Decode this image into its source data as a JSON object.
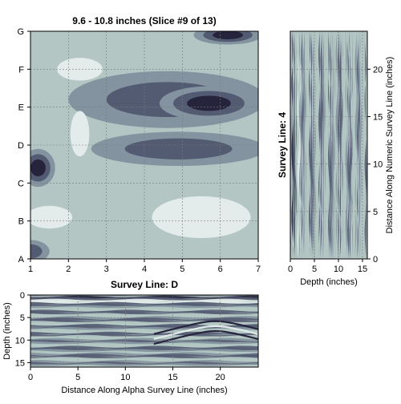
{
  "colors": {
    "light": "#e3ecea",
    "mid_light": "#b3c6c3",
    "mid": "#8393a0",
    "mid_dark": "#535b72",
    "dark": "#26233c",
    "grid": "#7c7c7c"
  },
  "chart_data": [
    {
      "type": "heatmap",
      "title": "9.6 - 10.8 inches  (Slice #9 of 13)",
      "xlabel": "",
      "ylabel": "",
      "x_ticks": [
        "1",
        "2",
        "3",
        "4",
        "5",
        "6",
        "7"
      ],
      "y_ticks": [
        "A",
        "B",
        "C",
        "D",
        "E",
        "F",
        "G"
      ],
      "xlim": [
        1,
        7
      ],
      "ylim": [
        0,
        6
      ],
      "grid": true,
      "levels": 5,
      "contour_features": [
        {
          "x": 4.6,
          "y": 4.2,
          "rx": 2.6,
          "ry": 0.75,
          "level": 3
        },
        {
          "x": 5.7,
          "y": 4.1,
          "rx": 1.3,
          "ry": 0.45,
          "level": 4
        },
        {
          "x": 4.9,
          "y": 2.9,
          "rx": 2.3,
          "ry": 0.45,
          "level": 3
        },
        {
          "x": 6.2,
          "y": 5.9,
          "rx": 0.9,
          "ry": 0.25,
          "level": 4
        },
        {
          "x": 1.2,
          "y": 2.4,
          "rx": 0.45,
          "ry": 0.5,
          "level": 4
        },
        {
          "x": 1.0,
          "y": 0.2,
          "rx": 0.5,
          "ry": 0.3,
          "level": 3
        },
        {
          "x": 5.5,
          "y": 1.1,
          "rx": 1.3,
          "ry": 0.55,
          "level": 0
        },
        {
          "x": 1.5,
          "y": 1.1,
          "rx": 0.6,
          "ry": 0.3,
          "level": 0
        },
        {
          "x": 2.3,
          "y": 5.0,
          "rx": 0.6,
          "ry": 0.3,
          "level": 0
        },
        {
          "x": 2.3,
          "y": 3.3,
          "rx": 0.25,
          "ry": 0.6,
          "level": 0
        }
      ]
    },
    {
      "type": "heatmap",
      "title": "Survey Line: D",
      "xlabel": "Distance Along Alpha Survey Line (inches)",
      "ylabel": "Depth (inches)",
      "x_ticks": [
        0,
        5,
        10,
        15,
        20
      ],
      "y_ticks": [
        0,
        5,
        10,
        15
      ],
      "xlim": [
        0,
        24
      ],
      "ylim": [
        0,
        16
      ],
      "y_inverted": true
    },
    {
      "type": "heatmap",
      "title": "Survey Line: 4",
      "xlabel": "Depth (inches)",
      "ylabel": "Distance Along Numeric Survey Line (inches)",
      "x_ticks": [
        0,
        5,
        10,
        15
      ],
      "y_ticks": [
        0,
        5,
        10,
        15,
        20
      ],
      "xlim": [
        0,
        16
      ],
      "ylim": [
        0,
        24
      ]
    }
  ]
}
